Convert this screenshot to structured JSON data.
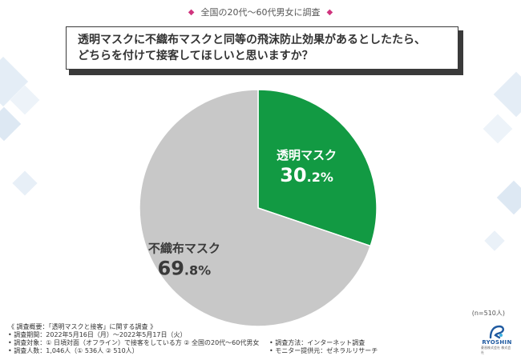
{
  "header": {
    "marker": "◆",
    "title": "全国の20代～60代男女に調査"
  },
  "question": {
    "line1": "透明マスクに不織布マスクと同等の飛沫防止効果があるとしたたら、",
    "line2": "どちらを付けて接客してほしいと思いますか？"
  },
  "chart_data": {
    "type": "pie",
    "slices": [
      {
        "label": "透明マスク",
        "value": 30.2,
        "value_int": "30",
        "value_dec": ".2%",
        "color": "#129a43"
      },
      {
        "label": "不織布マスク",
        "value": 69.8,
        "value_int": "69",
        "value_dec": ".8%",
        "color": "#c8c8c8"
      }
    ]
  },
  "sample_size": "(n=510人)",
  "survey": {
    "title": "《 調査概要：「透明マスクと接客」に関する調査 》",
    "period": "• 調査期間：2022年5月16日（月）～2022年5月17日（火）",
    "target": "• 調査対象：① 日頃対面（オフライン）で接客をしている方 ② 全国の20代～60代男女",
    "count": "• 調査人数：1,046人（① 536人 ② 510人）",
    "method": "• 調査方法：インターネット調査",
    "provider": "• モニター提供元：ゼネラルリサーチ"
  },
  "logo": {
    "name": "RYOSHIN",
    "sub": "菱晋株式会社 株式会社"
  },
  "colors": {
    "accent": "#c0286e",
    "green": "#129a43",
    "gray": "#c8c8c8"
  }
}
